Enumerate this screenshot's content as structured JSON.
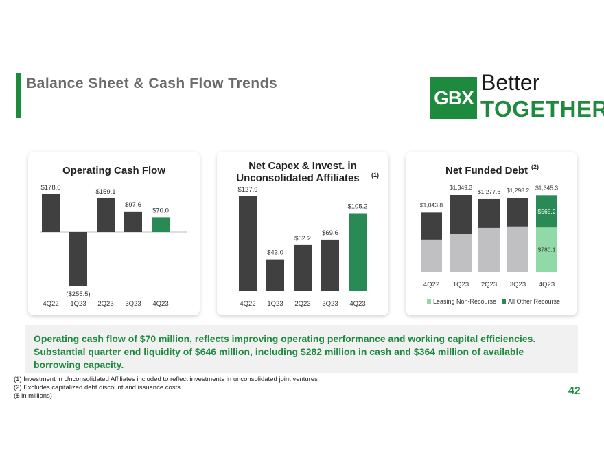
{
  "page": {
    "title": "Balance Sheet & Cash Flow Trends",
    "number": "42"
  },
  "logo": {
    "mark": "GBX",
    "line1": "Better",
    "line2": "TOGETHER"
  },
  "colors": {
    "brand_green": "#1e8a3e",
    "bar_dark": "#404040",
    "bar_gray": "#c0c0c2",
    "bar_light_green": "#92d9a8",
    "bar_highlight": "#2a8a55"
  },
  "chart_data": [
    {
      "type": "bar",
      "title": "Operating Cash Flow",
      "categories": [
        "4Q22",
        "1Q23",
        "2Q23",
        "3Q23",
        "4Q23"
      ],
      "values": [
        178.0,
        -255.5,
        159.1,
        97.6,
        70.0
      ],
      "labels": [
        "$178.0",
        "($255.5)",
        "$159.1",
        "$97.6",
        "$70.0"
      ],
      "highlight_index": 4,
      "ylim": [
        -255.5,
        178.0
      ],
      "xlabel": "",
      "ylabel": "",
      "grid": false
    },
    {
      "type": "bar",
      "title_line1": "Net Capex & Invest. in",
      "title_line2": "Unconsolidated Affiliates",
      "title_footnote": "(1)",
      "categories": [
        "4Q22",
        "1Q23",
        "2Q23",
        "3Q23",
        "4Q23"
      ],
      "values": [
        127.9,
        43.0,
        62.2,
        69.6,
        105.2
      ],
      "labels": [
        "$127.9",
        "$43.0",
        "$62.2",
        "$69.6",
        "$105.2"
      ],
      "highlight_index": 4,
      "ylim": [
        0,
        127.9
      ],
      "xlabel": "",
      "ylabel": "",
      "grid": false
    },
    {
      "type": "bar",
      "stacked": true,
      "title": "Net Funded Debt",
      "title_footnote": "(2)",
      "categories": [
        "4Q22",
        "1Q23",
        "2Q23",
        "3Q23",
        "4Q23"
      ],
      "totals": [
        1043.8,
        1349.3,
        1277.6,
        1298.2,
        1345.3
      ],
      "total_labels": [
        "$1,043.8",
        "$1,349.3",
        "$1,277.6",
        "$1,298.2",
        "$1,345.3"
      ],
      "series": [
        {
          "name": "Leasing Non-Recourse",
          "values": [
            568,
            664,
            772,
            798,
            780.1
          ]
        },
        {
          "name": "All Other Recourse",
          "values": [
            475.8,
            685.3,
            505.6,
            500.2,
            565.2
          ]
        }
      ],
      "segment_labels": {
        "bottom": "$780.1",
        "top": "$565.2"
      },
      "legend": [
        "Leasing Non-Recourse",
        "All Other Recourse"
      ],
      "legend_position": "bottom",
      "ylim": [
        0,
        1349.3
      ],
      "grid": false
    }
  ],
  "summary": {
    "text": "Operating cash flow of $70 million, reflects improving operating performance and working capital efficiencies. Substantial quarter end liquidity of $646 million, including $282 million in cash and $364 million of available borrowing capacity."
  },
  "footnotes": [
    "(1) Investment in Unconsolidated Affiliates included to reflect investments in unconsolidated joint ventures",
    "(2) Excludes capitalized debt discount and issuance costs",
    "($ in millions)"
  ]
}
